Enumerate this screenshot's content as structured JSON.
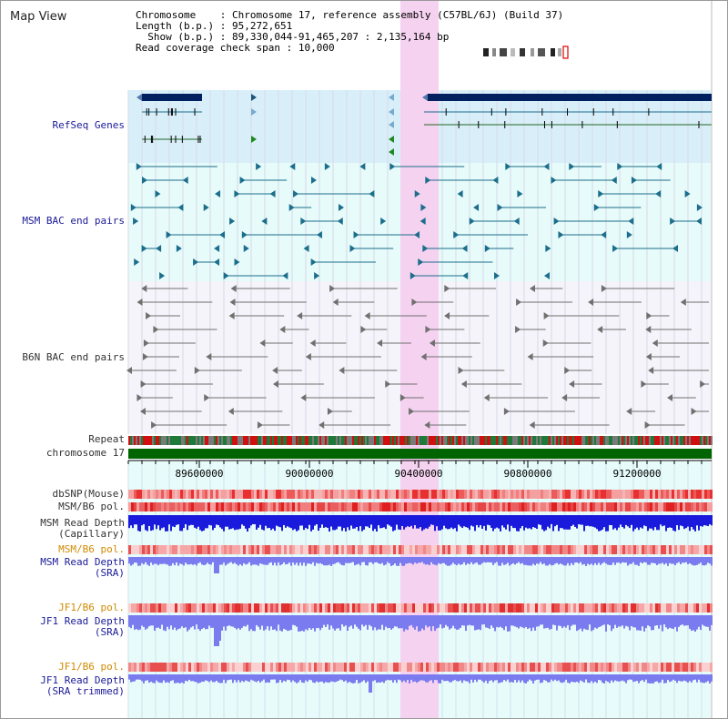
{
  "window": {
    "title": "Map View"
  },
  "info": {
    "chromosome_key": "Chromosome",
    "chromosome_val": "Chromosome 17, reference assembly (C57BL/6J) (Build 37)",
    "length_key": "Length (b.p.)",
    "length_val": "95,272,651",
    "show_key": "Show (b.p.)",
    "show_val": "89,330,044-91,465,207 : 2,135,164 bp",
    "span_key": "Read coverage check span",
    "span_val": "10,000"
  },
  "tracks": {
    "refseq": "RefSeq Genes",
    "msm_bac": "MSM BAC end pairs",
    "b6n_bac": "B6N BAC end pairs",
    "repeat": "Repeat",
    "chromosome": "chromosome 17",
    "dbsnp": "dbSNP(Mouse)",
    "msm_b6_pol_1": "MSM/B6 pol.",
    "msm_depth_cap_1": "MSM Read Depth",
    "msm_depth_cap_2": "(Capillary)",
    "msm_b6_pol_2": "MSM/B6 pol.",
    "msm_depth_sra_1": "MSM Read Depth",
    "msm_depth_sra_2": "(SRA)",
    "jf1_b6_pol_1": "JF1/B6 pol.",
    "jf1_depth_sra_1": "JF1 Read Depth",
    "jf1_depth_sra_2": "(SRA)",
    "jf1_b6_pol_2": "JF1/B6 pol.",
    "jf1_depth_trim_1": "JF1 Read Depth",
    "jf1_depth_trim_2": "(SRA trimmed)"
  },
  "axis": {
    "ticks": [
      "89600000",
      "90000000",
      "90400000",
      "90800000",
      "91200000"
    ]
  },
  "colors": {
    "highlight": "#f5d2f0",
    "refseq_bg": "#d8effa",
    "light_bg": "#e6fbfa",
    "gene_dark": "#002060",
    "msm_feature": "#1c6e8c",
    "b6n_feature": "#707070",
    "chromosome": "#006400",
    "depth_blue": "#1a1adc",
    "depth_light": "#7b7bf0"
  }
}
